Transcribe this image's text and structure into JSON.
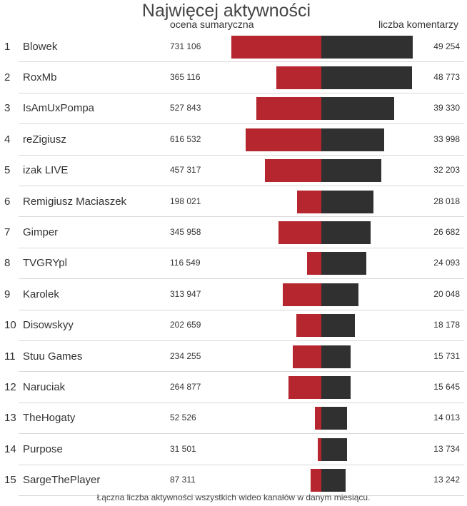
{
  "chart_data": {
    "type": "bar",
    "title": "Najwięcej aktywności",
    "left_header": "ocena sumaryczna",
    "right_header": "liczba komentarzy",
    "footer": "Łączna liczba aktywności wszystkich wideo kanałów w danym miesiącu.",
    "colors": {
      "score": "#b5262e",
      "comments": "#303030"
    },
    "rows": [
      {
        "rank": "1",
        "name": "Blowek",
        "score": 731106,
        "score_label": "731 106",
        "comments": 49254,
        "comments_label": "49 254"
      },
      {
        "rank": "2",
        "name": "RoxMb",
        "score": 365116,
        "score_label": "365 116",
        "comments": 48773,
        "comments_label": "48 773"
      },
      {
        "rank": "3",
        "name": "IsAmUxPompa",
        "score": 527843,
        "score_label": "527 843",
        "comments": 39330,
        "comments_label": "39 330"
      },
      {
        "rank": "4",
        "name": "reZigiusz",
        "score": 616532,
        "score_label": "616 532",
        "comments": 33998,
        "comments_label": "33 998"
      },
      {
        "rank": "5",
        "name": "izak LIVE",
        "score": 457317,
        "score_label": "457 317",
        "comments": 32203,
        "comments_label": "32 203"
      },
      {
        "rank": "6",
        "name": "Remigiusz Maciaszek",
        "score": 198021,
        "score_label": "198 021",
        "comments": 28018,
        "comments_label": "28 018"
      },
      {
        "rank": "7",
        "name": "Gimper",
        "score": 345958,
        "score_label": "345 958",
        "comments": 26682,
        "comments_label": "26 682"
      },
      {
        "rank": "8",
        "name": "TVGRYpl",
        "score": 116549,
        "score_label": "116 549",
        "comments": 24093,
        "comments_label": "24 093"
      },
      {
        "rank": "9",
        "name": "Karolek",
        "score": 313947,
        "score_label": "313 947",
        "comments": 20048,
        "comments_label": "20 048"
      },
      {
        "rank": "10",
        "name": "Disowskyy",
        "score": 202659,
        "score_label": "202 659",
        "comments": 18178,
        "comments_label": "18 178"
      },
      {
        "rank": "11",
        "name": "Stuu Games",
        "score": 234255,
        "score_label": "234 255",
        "comments": 15731,
        "comments_label": "15 731"
      },
      {
        "rank": "12",
        "name": "Naruciak",
        "score": 264877,
        "score_label": "264 877",
        "comments": 15645,
        "comments_label": "15 645"
      },
      {
        "rank": "13",
        "name": "TheHogaty",
        "score": 52526,
        "score_label": "52 526",
        "comments": 14013,
        "comments_label": "14 013"
      },
      {
        "rank": "14",
        "name": "Purpose",
        "score": 31501,
        "score_label": "31 501",
        "comments": 13734,
        "comments_label": "13 734"
      },
      {
        "rank": "15",
        "name": "SargeThePlayer",
        "score": 87311,
        "score_label": "87 311",
        "comments": 13242,
        "comments_label": "13 242"
      }
    ]
  }
}
